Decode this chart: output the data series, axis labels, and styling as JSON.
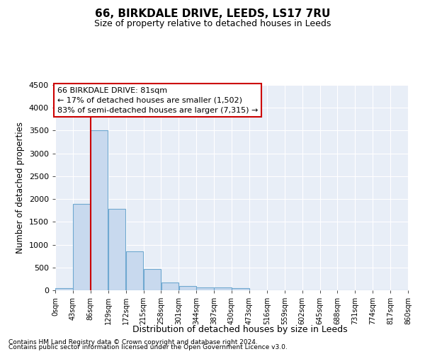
{
  "title": "66, BIRKDALE DRIVE, LEEDS, LS17 7RU",
  "subtitle": "Size of property relative to detached houses in Leeds",
  "xlabel": "Distribution of detached houses by size in Leeds",
  "ylabel": "Number of detached properties",
  "footnote1": "Contains HM Land Registry data © Crown copyright and database right 2024.",
  "footnote2": "Contains public sector information licensed under the Open Government Licence v3.0.",
  "bar_values": [
    50,
    1900,
    3500,
    1790,
    850,
    460,
    170,
    100,
    65,
    55,
    40,
    0,
    0,
    0,
    0,
    0,
    0,
    0,
    0,
    0
  ],
  "bar_color": "#c8d9ee",
  "bar_edge_color": "#6fa8d0",
  "bin_edges": [
    0,
    43,
    86,
    129,
    172,
    215,
    258,
    301,
    344,
    387,
    430,
    473,
    516,
    559,
    602,
    645,
    688,
    731,
    774,
    817,
    860
  ],
  "tick_labels": [
    "0sqm",
    "43sqm",
    "86sqm",
    "129sqm",
    "172sqm",
    "215sqm",
    "258sqm",
    "301sqm",
    "344sqm",
    "387sqm",
    "430sqm",
    "473sqm",
    "516sqm",
    "559sqm",
    "602sqm",
    "645sqm",
    "688sqm",
    "731sqm",
    "774sqm",
    "817sqm",
    "860sqm"
  ],
  "ylim": [
    0,
    4500
  ],
  "yticks": [
    0,
    500,
    1000,
    1500,
    2000,
    2500,
    3000,
    3500,
    4000,
    4500
  ],
  "vline_x": 86,
  "vline_color": "#cc0000",
  "annotation_line1": "66 BIRKDALE DRIVE: 81sqm",
  "annotation_line2": "← 17% of detached houses are smaller (1,502)",
  "annotation_line3": "83% of semi-detached houses are larger (7,315) →",
  "annotation_box_color": "#cc0000",
  "plot_bg_color": "#e8eef7",
  "bg_color": "#ffffff",
  "grid_color": "#ffffff"
}
